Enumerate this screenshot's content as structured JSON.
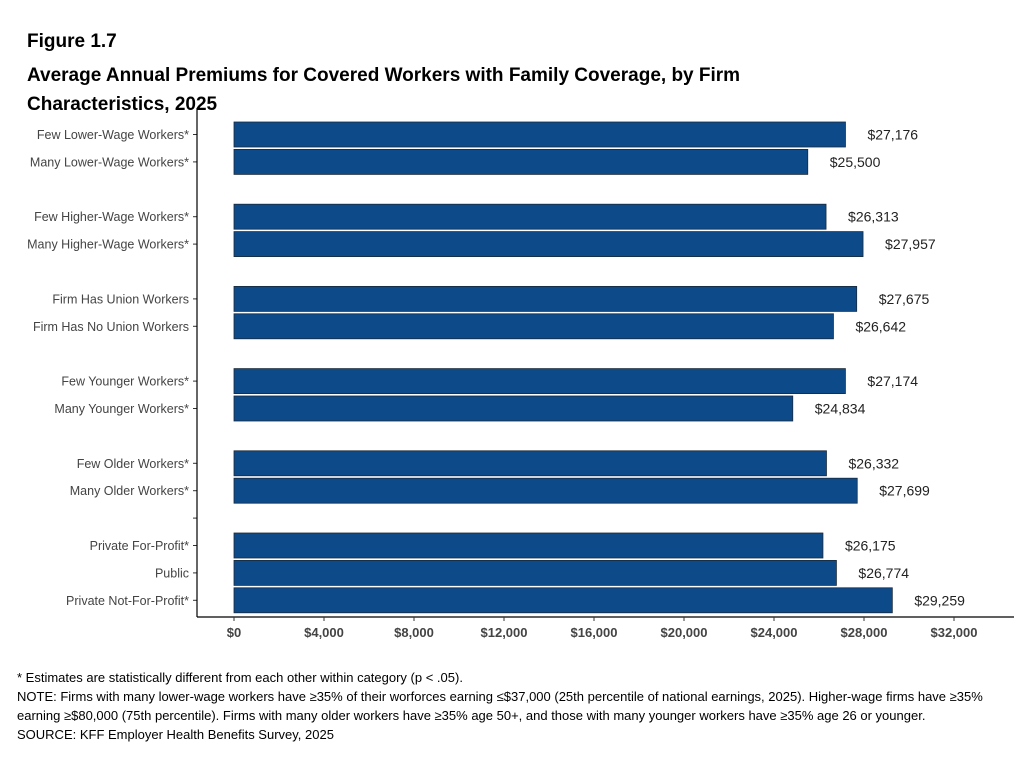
{
  "figure": {
    "number": "Figure 1.7",
    "title": "Average Annual Premiums for Covered Workers with Family Coverage, by Firm Characteristics, 2025"
  },
  "colors": {
    "bar": "#0d4a8a",
    "bar_outline": "#1a2a3a",
    "axis": "#000000"
  },
  "chart_data": {
    "type": "bar",
    "orientation": "horizontal",
    "title": "Average Annual Premiums for Covered Workers with Family Coverage, by Firm Characteristics, 2025",
    "categories": [
      "Few Lower-Wage Workers*",
      "Many Lower-Wage Workers*",
      "Few Higher-Wage Workers*",
      "Many Higher-Wage Workers*",
      "Firm Has Union Workers",
      "Firm Has No Union Workers",
      "Few Younger Workers*",
      "Many Younger Workers*",
      "Few Older Workers*",
      "Many Older Workers*",
      "Private For-Profit*",
      "Public",
      "Private Not-For-Profit*"
    ],
    "groups": [
      2,
      2,
      2,
      2,
      2,
      3
    ],
    "values": [
      27176,
      25500,
      26313,
      27957,
      27675,
      26642,
      27174,
      24834,
      26332,
      27699,
      26175,
      26774,
      29259
    ],
    "value_labels": [
      "$27,176",
      "$25,500",
      "$26,313",
      "$27,957",
      "$27,675",
      "$26,642",
      "$27,174",
      "$24,834",
      "$26,332",
      "$27,699",
      "$26,175",
      "$26,774",
      "$29,259"
    ],
    "xlim": [
      0,
      32000
    ],
    "xticks": [
      0,
      4000,
      8000,
      12000,
      16000,
      20000,
      24000,
      28000,
      32000
    ],
    "xtick_labels": [
      "$0",
      "$4,000",
      "$8,000",
      "$12,000",
      "$16,000",
      "$20,000",
      "$24,000",
      "$28,000",
      "$32,000"
    ],
    "xlabel": "",
    "ylabel": "",
    "grid": false,
    "legend": "none"
  },
  "footer": {
    "significance": "* Estimates are statistically different from each other within category (p < .05).",
    "note": "NOTE: Firms with many lower-wage workers have ≥35% of their worforces earning ≤$37,000 (25th percentile of national earnings, 2025). Higher-wage firms have ≥35% earning ≥$80,000 (75th percentile). Firms with many older workers have ≥35% age 50+, and those with many younger workers have ≥35% age 26 or younger.",
    "source": "SOURCE: KFF Employer Health Benefits Survey, 2025"
  }
}
